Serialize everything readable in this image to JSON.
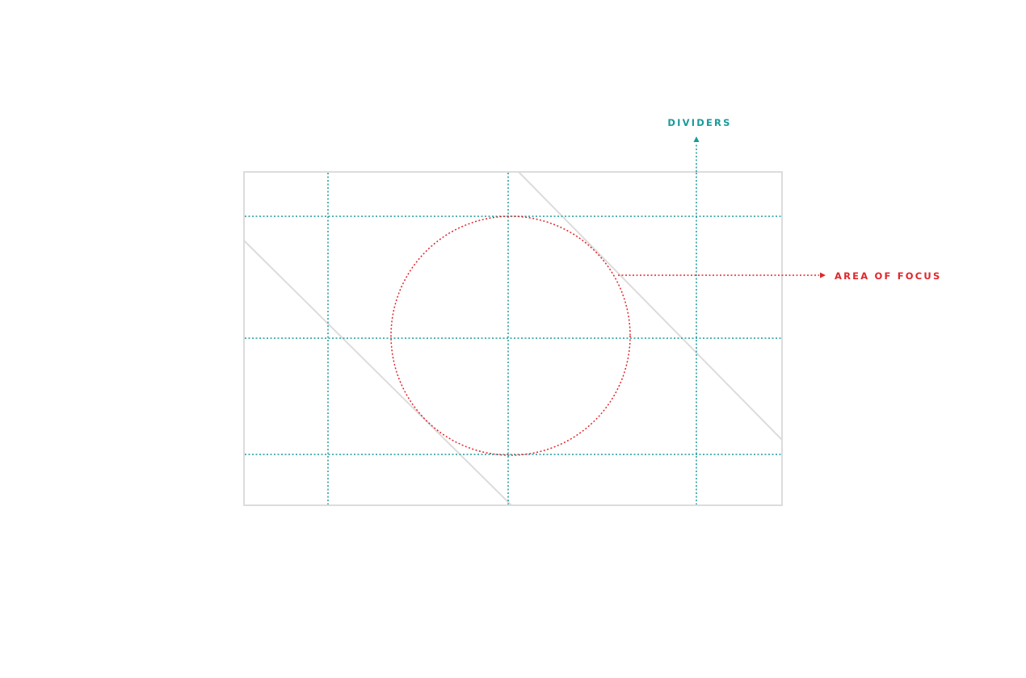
{
  "labels": {
    "dividers": "DIVIDERS",
    "area_of_focus": "AREA OF FOCUS"
  },
  "colors": {
    "divider": "#1a9a9a",
    "focus": "#e0262b",
    "frame": "#dcdcdc",
    "background": "#ffffff"
  }
}
